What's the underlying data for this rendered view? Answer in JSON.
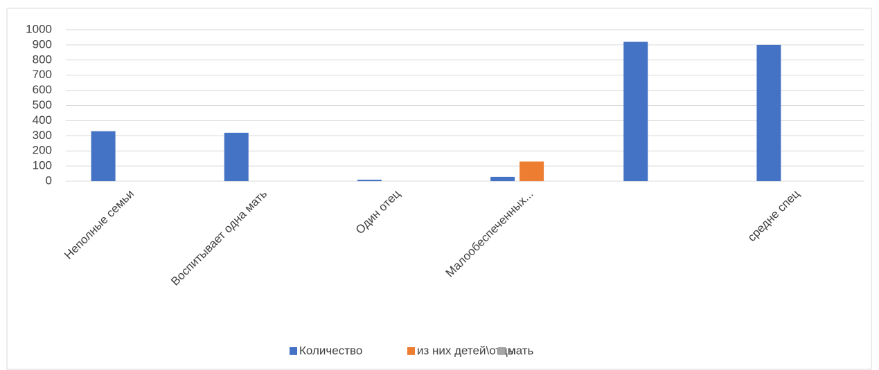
{
  "chart_data": {
    "type": "bar",
    "categories": [
      "Неполные семьи",
      "Воспитывает одна мать",
      "Один отец",
      "Малообеспеченных...",
      null,
      "средне спец"
    ],
    "series": [
      {
        "name": "Количество",
        "color": "#4472c4",
        "values": [
          330,
          320,
          10,
          28,
          920,
          900
        ]
      },
      {
        "name": "из них детей\\отцы",
        "color": "#ed7d31",
        "values": [
          null,
          null,
          null,
          130,
          null,
          null
        ]
      },
      {
        "name": "мать",
        "color": "#a5a5a5",
        "values": [
          null,
          null,
          null,
          null,
          null,
          null
        ]
      }
    ],
    "ylim": [
      0,
      1000
    ],
    "yticks": [
      0,
      100,
      200,
      300,
      400,
      500,
      600,
      700,
      800,
      900,
      1000
    ],
    "grid": true,
    "legend": "bottom"
  }
}
